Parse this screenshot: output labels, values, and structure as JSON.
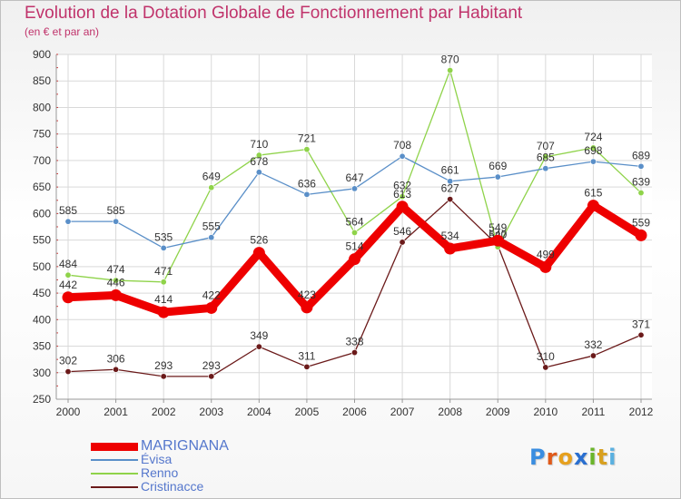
{
  "title": "Evolution de la Dotation Globale de Fonctionnement par Habitant",
  "subtitle": "(en € et par an)",
  "logo": {
    "letters": [
      "P",
      "r",
      "o",
      "x",
      "i",
      "t",
      "i"
    ],
    "colors": [
      "#3a8de0",
      "#e05a1a",
      "#e6a01e",
      "#2a6fd0",
      "#6ab52a",
      "#d8a020",
      "#5ab0e0"
    ]
  },
  "chart_data": {
    "type": "line",
    "title": "Evolution de la Dotation Globale de Fonctionnement par Habitant",
    "subtitle": "(en € et par an)",
    "x": [
      "2000",
      "2001",
      "2002",
      "2003",
      "2004",
      "2005",
      "2006",
      "2007",
      "2008",
      "2009",
      "2010",
      "2011",
      "2012"
    ],
    "ylim": [
      250,
      900
    ],
    "yticks": [
      250,
      300,
      350,
      400,
      450,
      500,
      550,
      600,
      650,
      700,
      750,
      800,
      850,
      900
    ],
    "grid": true,
    "legend_position": "bottom-left",
    "series": [
      {
        "name": "Cristinacce",
        "color": "#6b1a1a",
        "values": [
          302,
          306,
          293,
          293,
          349,
          311,
          338,
          546,
          627,
          540,
          310,
          332,
          371
        ]
      },
      {
        "name": "Renno",
        "color": "#8fd34a",
        "values": [
          484,
          474,
          471,
          649,
          710,
          721,
          564,
          632,
          870,
          537,
          707,
          724,
          639
        ]
      },
      {
        "name": "Évisa",
        "color": "#5a8fc8",
        "values": [
          585,
          585,
          535,
          555,
          678,
          636,
          647,
          708,
          661,
          669,
          685,
          698,
          689
        ]
      },
      {
        "name": "MARIGNANA",
        "color": "#ee0000",
        "values": [
          442,
          446,
          414,
          422,
          526,
          423,
          514,
          613,
          534,
          549,
          499,
          615,
          559
        ]
      }
    ],
    "legend_order": [
      "MARIGNANA",
      "Évisa",
      "Renno",
      "Cristinacce"
    ]
  }
}
